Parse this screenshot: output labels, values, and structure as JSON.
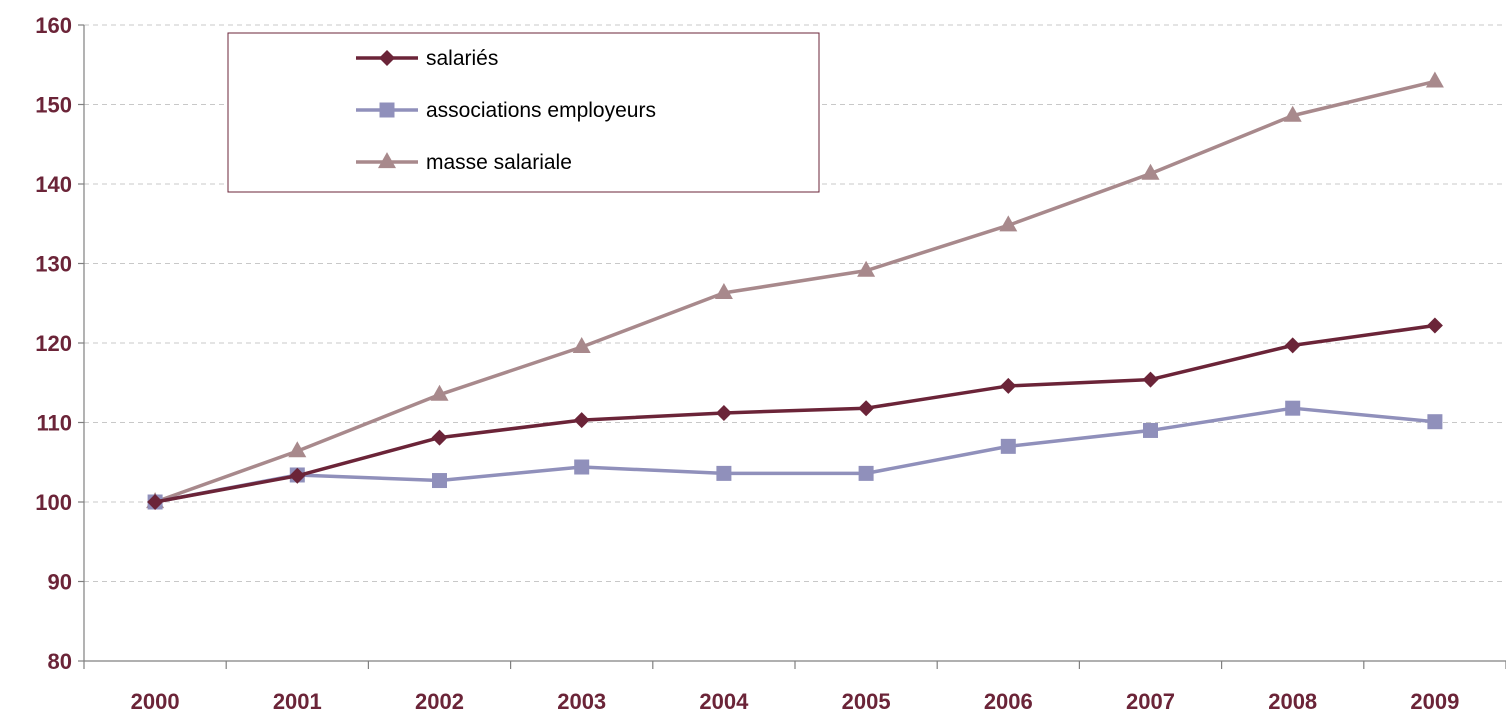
{
  "chart_data": {
    "type": "line",
    "title": "",
    "xlabel": "",
    "ylabel": "",
    "categories": [
      "2000",
      "2001",
      "2002",
      "2003",
      "2004",
      "2005",
      "2006",
      "2007",
      "2008",
      "2009"
    ],
    "ylim": [
      80,
      160
    ],
    "yticks": [
      80,
      90,
      100,
      110,
      120,
      130,
      140,
      150,
      160
    ],
    "grid": true,
    "legend_position": "top-left",
    "series": [
      {
        "name": "salariés",
        "color": "#6b2438",
        "marker": "diamond",
        "values": [
          100,
          103.3,
          108.1,
          110.3,
          111.2,
          111.8,
          114.6,
          115.4,
          119.7,
          122.2
        ]
      },
      {
        "name": "associations employeurs",
        "color": "#9090bb",
        "marker": "square",
        "values": [
          100,
          103.4,
          102.7,
          104.4,
          103.6,
          103.6,
          107.0,
          109.0,
          111.8,
          110.1
        ]
      },
      {
        "name": "masse salariale",
        "color": "#a8898c",
        "marker": "triangle",
        "values": [
          100,
          106.4,
          113.5,
          119.5,
          126.3,
          129.1,
          134.8,
          141.3,
          148.6,
          152.9
        ]
      }
    ]
  },
  "colors": {
    "tick_label": "#6b2438",
    "axis": "#808080",
    "gridline": "#c8c8c8",
    "legend_border": "#6b2438"
  }
}
